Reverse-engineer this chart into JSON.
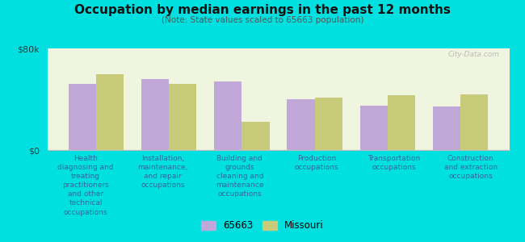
{
  "title": "Occupation by median earnings in the past 12 months",
  "subtitle": "(Note: State values scaled to 65663 population)",
  "categories": [
    "Health\ndiagnosing and\ntreating\npractitioners\nand other\ntechnical\noccupations",
    "Installation,\nmaintenance,\nand repair\noccupations",
    "Building and\ngrounds\ncleaning and\nmaintenance\noccupations",
    "Production\noccupations",
    "Transportation\noccupations",
    "Construction\nand extraction\noccupations"
  ],
  "values_65663": [
    52000,
    56000,
    54000,
    40000,
    35000,
    34000
  ],
  "values_missouri": [
    60000,
    52000,
    22000,
    41000,
    43000,
    44000
  ],
  "color_65663": "#c0a8d8",
  "color_missouri": "#c8cc7a",
  "background_color": "#00e0e0",
  "plot_bg_color": "#f0f5e0",
  "ylim": [
    0,
    80000
  ],
  "yticks": [
    0,
    80000
  ],
  "yticklabels": [
    "$0",
    "$80k"
  ],
  "legend_labels": [
    "65663",
    "Missouri"
  ],
  "bar_width": 0.38,
  "figsize": [
    6.5,
    3.0
  ],
  "dpi": 100
}
